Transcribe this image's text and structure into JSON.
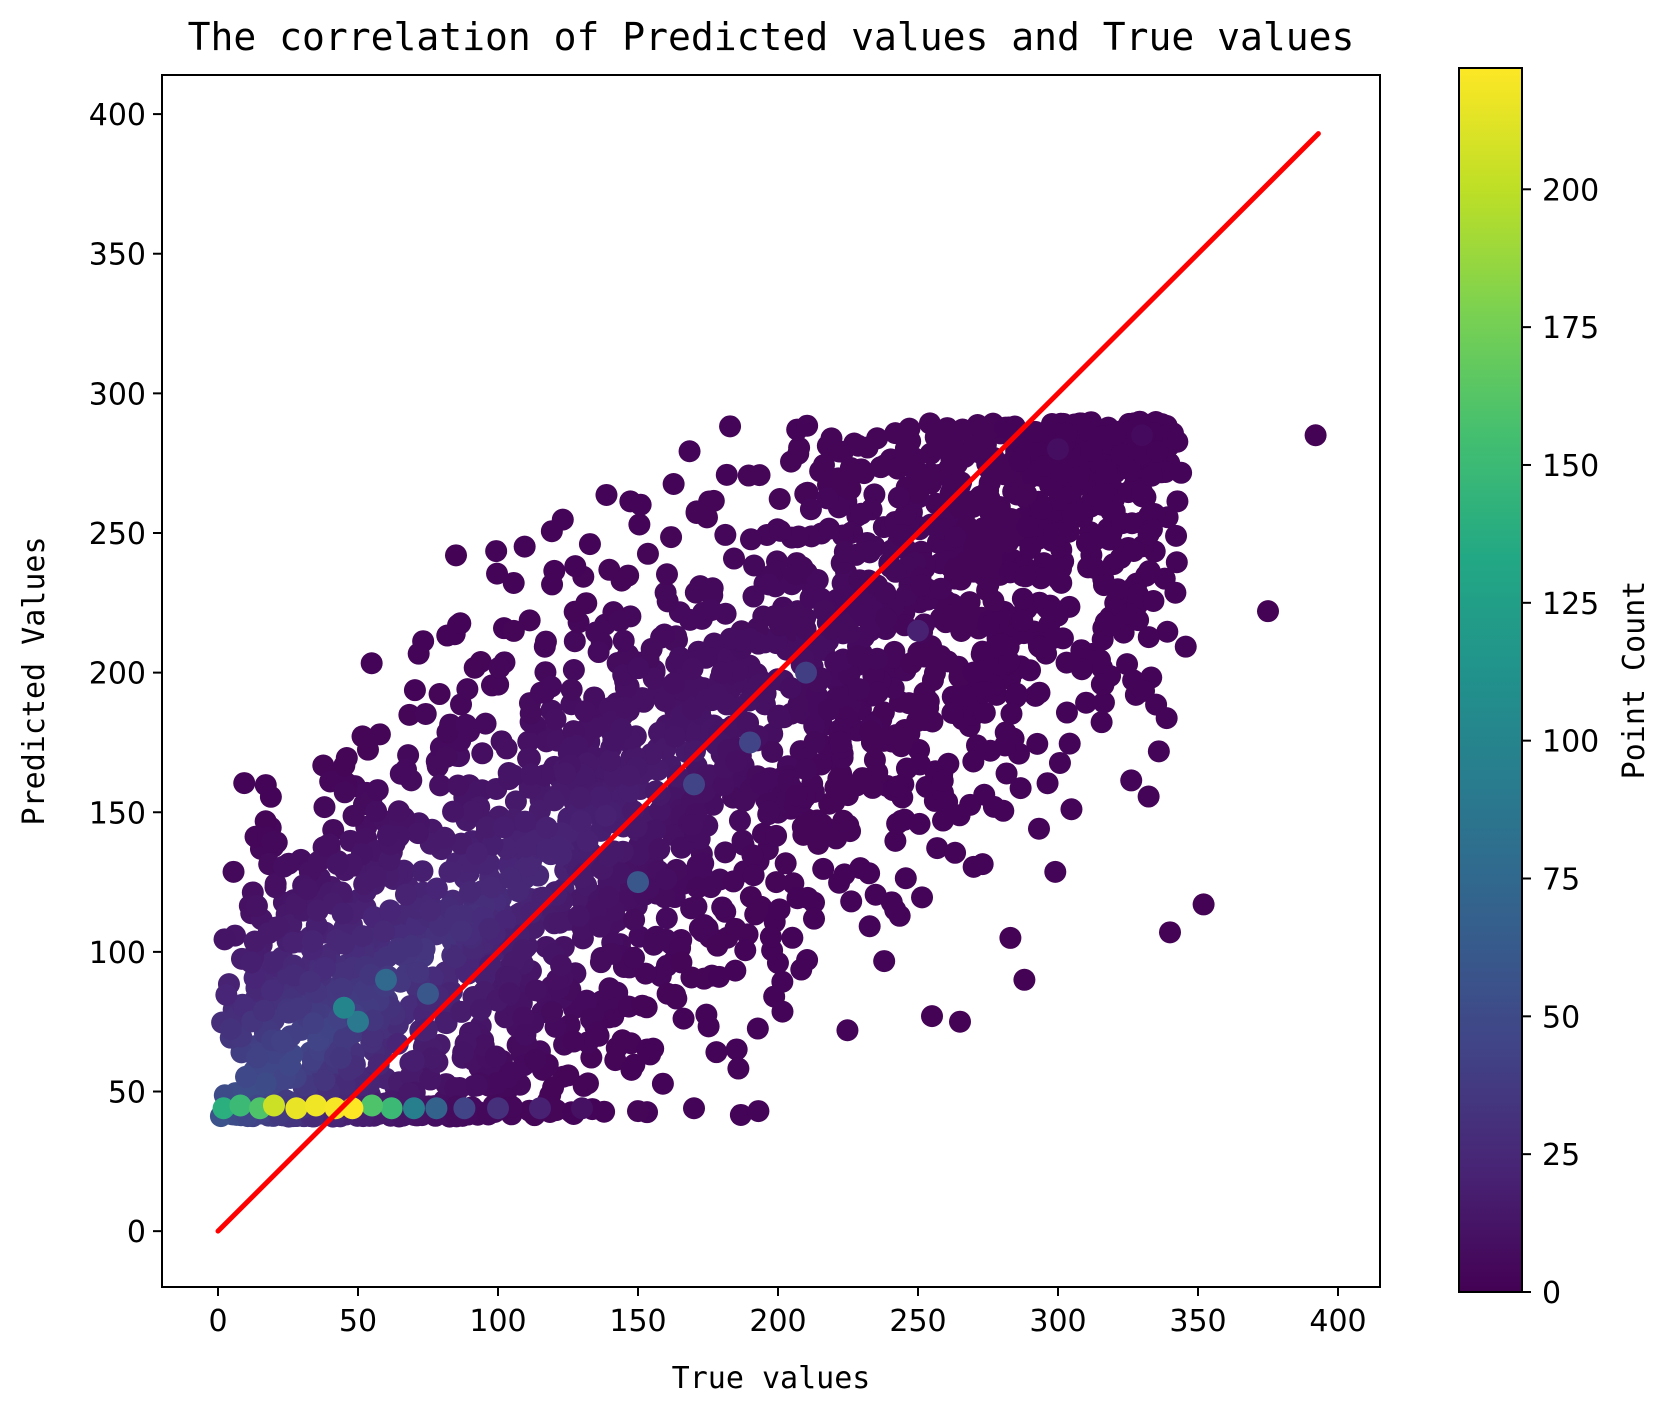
{
  "chart_data": {
    "type": "scatter",
    "title": "The correlation of Predicted values and True values",
    "xlabel": "True values",
    "ylabel": "Predicted Values",
    "xlim": [
      -20,
      415
    ],
    "ylim": [
      -20,
      414
    ],
    "xticks": [
      0,
      50,
      100,
      150,
      200,
      250,
      300,
      350,
      400
    ],
    "yticks": [
      0,
      50,
      100,
      150,
      200,
      250,
      300,
      350,
      400
    ],
    "grid": false,
    "colorbar": {
      "label": "Point Count",
      "range": [
        0,
        222
      ],
      "ticks": [
        0,
        25,
        50,
        75,
        100,
        125,
        150,
        175,
        200
      ],
      "colormap": "viridis"
    },
    "reference_line": {
      "x": [
        0,
        393
      ],
      "y": [
        0,
        393
      ],
      "color": "#ff0000"
    },
    "series": [
      {
        "name": "density_scatter",
        "description": "dense cloud of points around y=x, floor at ~41; colors by local point count",
        "points": [
          {
            "x": 2,
            "y": 44,
            "count": 140
          },
          {
            "x": 8,
            "y": 45,
            "count": 150
          },
          {
            "x": 15,
            "y": 44,
            "count": 160
          },
          {
            "x": 20,
            "y": 45,
            "count": 205
          },
          {
            "x": 28,
            "y": 44,
            "count": 215
          },
          {
            "x": 35,
            "y": 45,
            "count": 218
          },
          {
            "x": 42,
            "y": 44,
            "count": 220
          },
          {
            "x": 48,
            "y": 44,
            "count": 222
          },
          {
            "x": 55,
            "y": 45,
            "count": 160
          },
          {
            "x": 62,
            "y": 44,
            "count": 150
          },
          {
            "x": 70,
            "y": 44,
            "count": 95
          },
          {
            "x": 78,
            "y": 44,
            "count": 70
          },
          {
            "x": 88,
            "y": 44,
            "count": 45
          },
          {
            "x": 100,
            "y": 44,
            "count": 30
          },
          {
            "x": 115,
            "y": 44,
            "count": 20
          },
          {
            "x": 130,
            "y": 44,
            "count": 10
          },
          {
            "x": 150,
            "y": 43,
            "count": 3
          },
          {
            "x": 170,
            "y": 44,
            "count": 2
          },
          {
            "x": 193,
            "y": 43,
            "count": 2
          },
          {
            "x": 50,
            "y": 75,
            "count": 90
          },
          {
            "x": 45,
            "y": 80,
            "count": 100
          },
          {
            "x": 60,
            "y": 90,
            "count": 75
          },
          {
            "x": 75,
            "y": 85,
            "count": 60
          },
          {
            "x": 150,
            "y": 125,
            "count": 60
          },
          {
            "x": 190,
            "y": 175,
            "count": 45
          },
          {
            "x": 210,
            "y": 200,
            "count": 40
          },
          {
            "x": 170,
            "y": 160,
            "count": 45
          },
          {
            "x": 250,
            "y": 215,
            "count": 20
          },
          {
            "x": 300,
            "y": 280,
            "count": 8
          },
          {
            "x": 330,
            "y": 285,
            "count": 6
          },
          {
            "x": 392,
            "y": 285,
            "count": 1
          },
          {
            "x": 85,
            "y": 242,
            "count": 1
          },
          {
            "x": 283,
            "y": 105,
            "count": 1
          },
          {
            "x": 288,
            "y": 90,
            "count": 1
          },
          {
            "x": 340,
            "y": 107,
            "count": 1
          },
          {
            "x": 352,
            "y": 117,
            "count": 1
          },
          {
            "x": 375,
            "y": 222,
            "count": 1
          },
          {
            "x": 265,
            "y": 75,
            "count": 1
          },
          {
            "x": 255,
            "y": 77,
            "count": 1
          }
        ]
      }
    ]
  }
}
